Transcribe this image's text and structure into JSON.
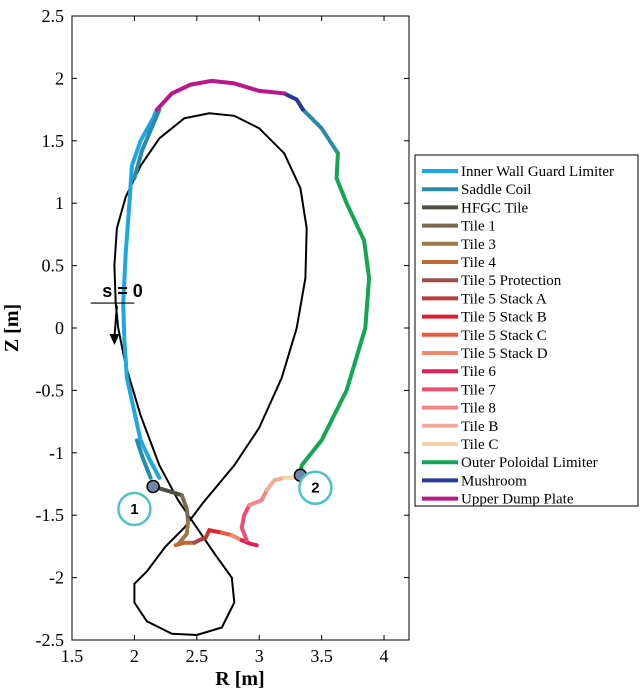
{
  "chart_data": {
    "type": "line",
    "xlabel": "R [m]",
    "ylabel": "Z [m]",
    "xlim": [
      1.5,
      4.2
    ],
    "ylim": [
      -2.5,
      2.5
    ],
    "xticks": [
      "1.5",
      "2",
      "2.5",
      "3",
      "3.5",
      "4"
    ],
    "yticks": [
      "-2.5",
      "-2",
      "-1.5",
      "-1",
      "-0.5",
      "0",
      "0.5",
      "1",
      "1.5",
      "2",
      "2.5"
    ],
    "legend_position": "right",
    "series": [
      {
        "name": "Inner Wall Guard Limiter",
        "color": "#1ca8e0",
        "points": [
          [
            2.2,
            -1.2
          ],
          [
            2.12,
            -1.05
          ],
          [
            2.05,
            -0.9
          ],
          [
            1.94,
            -0.4
          ],
          [
            1.92,
            -0.1
          ],
          [
            1.91,
            0.2
          ],
          [
            1.93,
            0.6
          ],
          [
            1.96,
            1.0
          ],
          [
            1.98,
            1.3
          ],
          [
            2.05,
            1.5
          ],
          [
            2.15,
            1.68
          ],
          [
            2.18,
            1.75
          ]
        ]
      },
      {
        "name": "Saddle Coil",
        "color": "#2a8aa8",
        "points": [
          [
            2.0,
            1.2
          ],
          [
            2.06,
            1.42
          ],
          [
            2.2,
            1.75
          ]
        ]
      },
      {
        "name": "HFGC Tile",
        "color": "#4b5244",
        "points": [
          [
            2.15,
            -1.27
          ],
          [
            2.25,
            -1.3
          ],
          [
            2.38,
            -1.34
          ]
        ]
      },
      {
        "name": "Tile 1",
        "color": "#7a6a4e",
        "points": [
          [
            2.38,
            -1.34
          ],
          [
            2.42,
            -1.45
          ],
          [
            2.43,
            -1.55
          ]
        ]
      },
      {
        "name": "Tile 3",
        "color": "#9c7a4a",
        "points": [
          [
            2.43,
            -1.55
          ],
          [
            2.42,
            -1.65
          ],
          [
            2.36,
            -1.72
          ]
        ]
      },
      {
        "name": "Tile 4",
        "color": "#c06a32",
        "points": [
          [
            2.33,
            -1.74
          ],
          [
            2.4,
            -1.72
          ],
          [
            2.48,
            -1.72
          ]
        ]
      },
      {
        "name": "Tile 5 Protection",
        "color": "#9e4e4e",
        "points": [
          [
            2.48,
            -1.72
          ],
          [
            2.52,
            -1.7
          ]
        ]
      },
      {
        "name": "Tile 5 Stack A",
        "color": "#b83a3a",
        "points": [
          [
            2.52,
            -1.7
          ],
          [
            2.57,
            -1.68
          ],
          [
            2.6,
            -1.62
          ]
        ]
      },
      {
        "name": "Tile 5 Stack B",
        "color": "#e01e2e",
        "points": [
          [
            2.6,
            -1.62
          ],
          [
            2.7,
            -1.64
          ]
        ]
      },
      {
        "name": "Tile 5 Stack C",
        "color": "#ea5a38",
        "points": [
          [
            2.7,
            -1.64
          ],
          [
            2.78,
            -1.66
          ]
        ]
      },
      {
        "name": "Tile 5 Stack D",
        "color": "#f08a6a",
        "points": [
          [
            2.78,
            -1.66
          ],
          [
            2.86,
            -1.7
          ]
        ]
      },
      {
        "name": "Tile 6",
        "color": "#e0205a",
        "points": [
          [
            2.86,
            -1.7
          ],
          [
            2.93,
            -1.73
          ],
          [
            2.98,
            -1.74
          ]
        ]
      },
      {
        "name": "Tile 7",
        "color": "#ea5070",
        "points": [
          [
            2.9,
            -1.7
          ],
          [
            2.86,
            -1.6
          ],
          [
            2.88,
            -1.5
          ],
          [
            2.92,
            -1.42
          ]
        ]
      },
      {
        "name": "Tile 8",
        "color": "#f2848a",
        "points": [
          [
            2.92,
            -1.42
          ],
          [
            3.02,
            -1.38
          ],
          [
            3.06,
            -1.3
          ]
        ]
      },
      {
        "name": "Tile B",
        "color": "#f4aa98",
        "points": [
          [
            3.06,
            -1.3
          ],
          [
            3.12,
            -1.22
          ],
          [
            3.2,
            -1.2
          ]
        ]
      },
      {
        "name": "Tile C",
        "color": "#f6d4a8",
        "points": [
          [
            3.2,
            -1.2
          ],
          [
            3.3,
            -1.2
          ]
        ]
      },
      {
        "name": "Outer Poloidal Limiter",
        "color": "#13a653",
        "points": [
          [
            3.33,
            -1.18
          ],
          [
            3.34,
            -1.1
          ],
          [
            3.5,
            -0.9
          ],
          [
            3.7,
            -0.5
          ],
          [
            3.85,
            0.0
          ],
          [
            3.88,
            0.4
          ],
          [
            3.84,
            0.7
          ],
          [
            3.7,
            1.0
          ],
          [
            3.62,
            1.2
          ],
          [
            3.63,
            1.4
          ]
        ]
      },
      {
        "name": "Mushroom",
        "color": "#283896",
        "points": [
          [
            3.2,
            1.88
          ],
          [
            3.3,
            1.83
          ],
          [
            3.35,
            1.75
          ]
        ]
      },
      {
        "name": "Upper Dump Plate",
        "color": "#b8188a",
        "points": [
          [
            2.18,
            1.75
          ],
          [
            2.3,
            1.88
          ],
          [
            2.45,
            1.95
          ],
          [
            2.62,
            1.98
          ],
          [
            2.8,
            1.96
          ],
          [
            3.0,
            1.9
          ],
          [
            3.2,
            1.88
          ]
        ]
      }
    ],
    "extra_series": [
      {
        "color": "#2a8aa8",
        "points": [
          [
            3.35,
            1.75
          ],
          [
            3.5,
            1.6
          ],
          [
            3.63,
            1.4
          ]
        ]
      },
      {
        "color": "#2a8aa8",
        "points": [
          [
            2.13,
            -1.2
          ],
          [
            2.07,
            -1.05
          ],
          [
            2.02,
            -0.9
          ]
        ]
      }
    ],
    "separatrix": {
      "color": "#000000",
      "points": [
        [
          1.85,
          0.2
        ],
        [
          1.84,
          0.5
        ],
        [
          1.86,
          0.8
        ],
        [
          1.93,
          1.05
        ],
        [
          2.05,
          1.3
        ],
        [
          2.2,
          1.52
        ],
        [
          2.4,
          1.68
        ],
        [
          2.6,
          1.72
        ],
        [
          2.8,
          1.7
        ],
        [
          3.0,
          1.6
        ],
        [
          3.2,
          1.4
        ],
        [
          3.33,
          1.12
        ],
        [
          3.38,
          0.8
        ],
        [
          3.37,
          0.4
        ],
        [
          3.3,
          0.0
        ],
        [
          3.18,
          -0.4
        ],
        [
          3.0,
          -0.8
        ],
        [
          2.8,
          -1.1
        ],
        [
          2.55,
          -1.4
        ],
        [
          2.4,
          -1.6
        ],
        [
          2.25,
          -1.75
        ],
        [
          2.1,
          -1.95
        ],
        [
          2.0,
          -2.05
        ],
        [
          2.0,
          -2.2
        ],
        [
          2.1,
          -2.35
        ],
        [
          2.3,
          -2.45
        ],
        [
          2.5,
          -2.46
        ],
        [
          2.7,
          -2.4
        ],
        [
          2.8,
          -2.2
        ],
        [
          2.78,
          -2.0
        ],
        [
          2.65,
          -1.82
        ],
        [
          2.5,
          -1.6
        ],
        [
          2.35,
          -1.38
        ],
        [
          2.2,
          -1.1
        ],
        [
          2.05,
          -0.7
        ],
        [
          1.93,
          -0.3
        ],
        [
          1.87,
          0.0
        ],
        [
          1.85,
          0.2
        ]
      ]
    },
    "annotations": {
      "s_line": {
        "label": "s = 0",
        "x_range": [
          1.65,
          2.0
        ],
        "y": 0.2
      },
      "arrow": {
        "from": [
          1.86,
          0.18
        ],
        "to": [
          1.84,
          -0.12
        ]
      },
      "markers": [
        {
          "label": "1",
          "point": [
            2.15,
            -1.27
          ],
          "circle": [
            2.0,
            -1.45
          ]
        },
        {
          "label": "2",
          "point": [
            3.33,
            -1.18
          ],
          "circle": [
            3.45,
            -1.28
          ]
        }
      ]
    }
  }
}
